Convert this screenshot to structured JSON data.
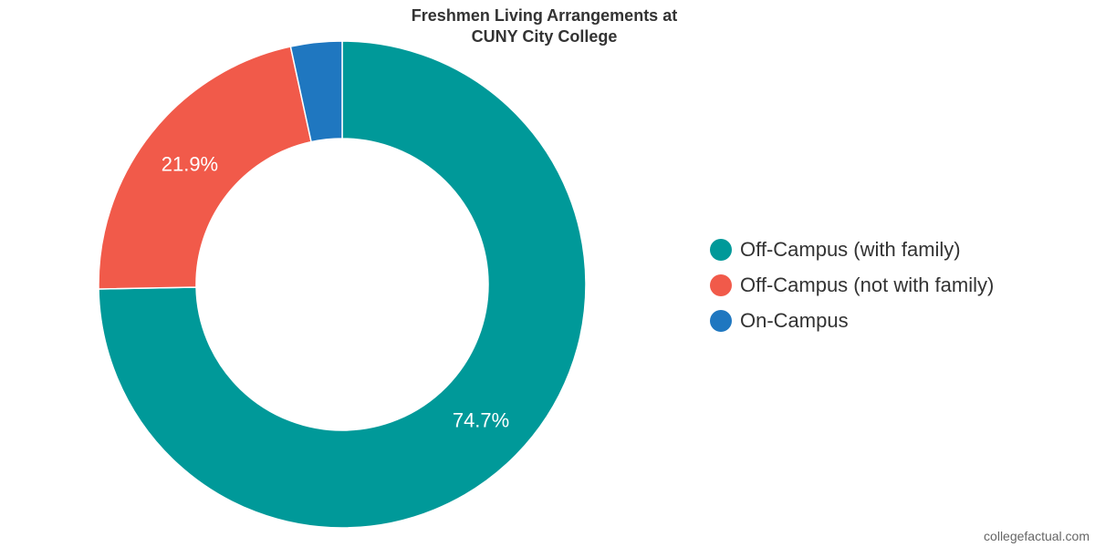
{
  "chart_data": {
    "type": "pie",
    "variant": "donut",
    "title_lines": [
      "Freshmen Living Arrangements at",
      "CUNY City College"
    ],
    "categories": [
      "Off-Campus (with family)",
      "Off-Campus (not with family)",
      "On-Campus"
    ],
    "values": [
      74.7,
      21.9,
      3.4
    ],
    "data_labels": [
      "74.7%",
      "21.9%",
      ""
    ],
    "colors": [
      "#009999",
      "#f15a4a",
      "#1f77c0"
    ],
    "legend_position": "right"
  },
  "credit": "collegefactual.com"
}
